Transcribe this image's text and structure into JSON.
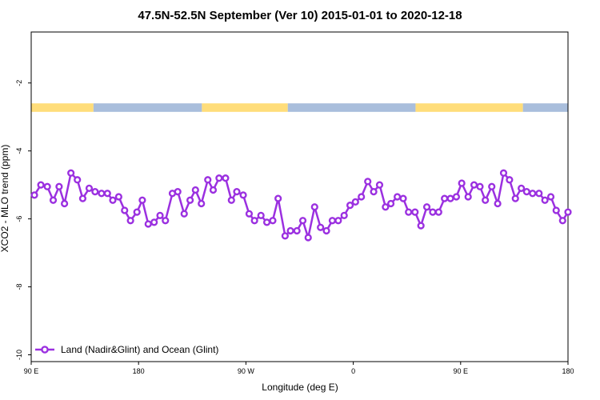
{
  "chart_data": {
    "type": "line",
    "title": "47.5N-52.5N September (Ver 10)   2015-01-01 to 2020-12-18",
    "xlabel": "Longitude (deg E)",
    "ylabel": "XCO2 - MLO trend (ppm)",
    "xlim": [
      0,
      100
    ],
    "ylim": [
      -10.2,
      -0.5
    ],
    "x_ticks": [
      {
        "pos": 0,
        "label": "90 E"
      },
      {
        "pos": 20,
        "label": "180"
      },
      {
        "pos": 40,
        "label": "90 W"
      },
      {
        "pos": 60,
        "label": "0"
      },
      {
        "pos": 80,
        "label": "90 E"
      },
      {
        "pos": 100,
        "label": "180"
      }
    ],
    "y_ticks": [
      -2,
      -4,
      -6,
      -8,
      -10
    ],
    "grid": false,
    "legend": {
      "position": "bottom-left"
    },
    "surface_band": {
      "y_range": [
        -2.85,
        -2.6
      ],
      "colors": {
        "land": "#FFDD7A",
        "ocean": "#A9BEDC"
      },
      "segments": [
        {
          "type": "land",
          "from": 0,
          "to": 11.6
        },
        {
          "type": "ocean",
          "from": 11.6,
          "to": 31.8
        },
        {
          "type": "land",
          "from": 31.8,
          "to": 47.8
        },
        {
          "type": "ocean",
          "from": 47.8,
          "to": 71.6
        },
        {
          "type": "land",
          "from": 71.6,
          "to": 91.6
        },
        {
          "type": "ocean",
          "from": 91.6,
          "to": 100
        }
      ]
    },
    "series": [
      {
        "name": "Land (Nadir&Glint) and Ocean (Glint)",
        "color": "#9B30E0",
        "x": [
          0.6,
          1.8,
          3.0,
          4.1,
          5.2,
          6.2,
          7.4,
          8.6,
          9.6,
          10.8,
          11.9,
          13.1,
          14.2,
          15.2,
          16.3,
          17.4,
          18.5,
          19.7,
          20.7,
          21.8,
          22.9,
          24.0,
          25.0,
          26.3,
          27.3,
          28.5,
          29.6,
          30.6,
          31.7,
          32.9,
          33.9,
          35.0,
          36.2,
          37.3,
          38.3,
          39.5,
          40.6,
          41.6,
          42.8,
          43.9,
          45.0,
          46.0,
          47.3,
          48.3,
          49.5,
          50.6,
          51.6,
          52.8,
          53.9,
          55.0,
          56.1,
          57.2,
          58.3,
          59.4,
          60.4,
          61.5,
          62.7,
          63.8,
          64.9,
          66.0,
          67.0,
          68.2,
          69.3,
          70.3,
          71.5,
          72.6,
          73.7,
          74.8,
          75.9,
          77.0,
          78.1,
          79.2,
          80.2,
          81.4,
          82.5,
          83.6,
          84.6,
          85.8,
          86.9,
          88.0,
          89.1,
          90.2,
          91.3,
          92.3,
          93.4,
          94.6,
          95.7,
          96.8,
          97.8,
          99.0,
          100.0
        ],
        "y": [
          -5.3,
          -5.0,
          -5.05,
          -5.45,
          -5.05,
          -5.55,
          -4.65,
          -4.85,
          -5.4,
          -5.1,
          -5.2,
          -5.25,
          -5.25,
          -5.45,
          -5.35,
          -5.75,
          -6.05,
          -5.8,
          -5.45,
          -6.15,
          -6.1,
          -5.9,
          -6.05,
          -5.25,
          -5.2,
          -5.85,
          -5.45,
          -5.15,
          -5.55,
          -4.85,
          -5.15,
          -4.8,
          -4.8,
          -5.45,
          -5.2,
          -5.3,
          -5.85,
          -6.05,
          -5.9,
          -6.1,
          -6.05,
          -5.4,
          -6.5,
          -6.35,
          -6.35,
          -6.05,
          -6.55,
          -5.65,
          -6.25,
          -6.35,
          -6.05,
          -6.05,
          -5.9,
          -5.6,
          -5.5,
          -5.35,
          -4.9,
          -5.2,
          -5.0,
          -5.65,
          -5.55,
          -5.35,
          -5.4,
          -5.8,
          -5.8,
          -6.2,
          -5.65,
          -5.8,
          -5.8,
          -5.4,
          -5.4,
          -5.35,
          -4.95,
          -5.35,
          -5.0,
          -5.05,
          -5.45,
          -5.05,
          -5.55,
          -4.65,
          -4.85,
          -5.4,
          -5.1,
          -5.2,
          -5.25,
          -5.25,
          -5.45,
          -5.35,
          -5.75,
          -6.05,
          -5.8
        ]
      }
    ]
  }
}
